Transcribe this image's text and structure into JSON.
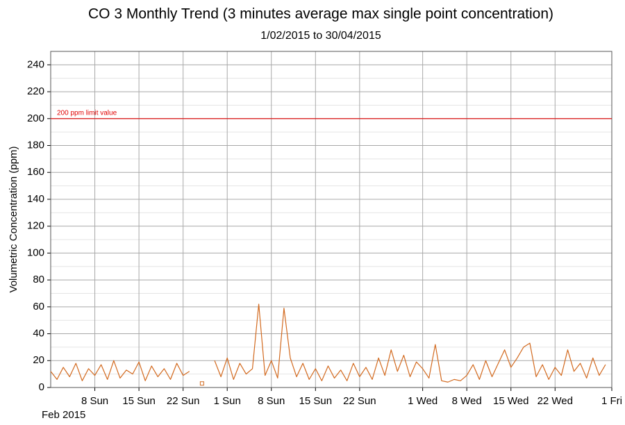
{
  "chart_data": {
    "type": "line",
    "title": "CO 3 Monthly Trend (3 minutes average max single point concentration)",
    "subtitle": "1/02/2015 to 30/04/2015",
    "y_label": "Volumetric Concentration (ppm)",
    "x_period_label": "Feb 2015",
    "color": "#d2691e",
    "grid": true,
    "ylim": [
      0,
      250
    ],
    "yticks": [
      0,
      20,
      40,
      60,
      80,
      100,
      120,
      140,
      160,
      180,
      200,
      220,
      240
    ],
    "yminor_ticks": [
      10,
      30,
      50,
      70,
      90,
      110,
      130,
      150,
      170,
      190,
      210,
      230
    ],
    "xlim": [
      "2015-02-01",
      "2015-05-01"
    ],
    "xticks": [
      {
        "value": "2015-02-08",
        "label": "8 Sun"
      },
      {
        "value": "2015-02-15",
        "label": "15 Sun"
      },
      {
        "value": "2015-02-22",
        "label": "22 Sun"
      },
      {
        "value": "2015-03-01",
        "label": "1 Sun"
      },
      {
        "value": "2015-03-08",
        "label": "8 Sun"
      },
      {
        "value": "2015-03-15",
        "label": "15 Sun"
      },
      {
        "value": "2015-03-22",
        "label": "22 Sun"
      },
      {
        "value": "2015-04-01",
        "label": "1 Wed"
      },
      {
        "value": "2015-04-08",
        "label": "8 Wed"
      },
      {
        "value": "2015-04-15",
        "label": "15 Wed"
      },
      {
        "value": "2015-04-22",
        "label": "22 Wed"
      },
      {
        "value": "2015-05-01",
        "label": "1 Fri"
      }
    ],
    "reference_line": {
      "value": 200,
      "label": "200 ppm limit value",
      "color": "#e00000"
    },
    "x": [
      "2015-02-01",
      "2015-02-02",
      "2015-02-03",
      "2015-02-04",
      "2015-02-05",
      "2015-02-06",
      "2015-02-07",
      "2015-02-08",
      "2015-02-09",
      "2015-02-10",
      "2015-02-11",
      "2015-02-12",
      "2015-02-13",
      "2015-02-14",
      "2015-02-15",
      "2015-02-16",
      "2015-02-17",
      "2015-02-18",
      "2015-02-19",
      "2015-02-20",
      "2015-02-21",
      "2015-02-22",
      "2015-02-23",
      "2015-02-24",
      "2015-02-25",
      "2015-02-26",
      "2015-02-27",
      "2015-02-28",
      "2015-03-01",
      "2015-03-02",
      "2015-03-03",
      "2015-03-04",
      "2015-03-05",
      "2015-03-06",
      "2015-03-07",
      "2015-03-08",
      "2015-03-09",
      "2015-03-10",
      "2015-03-11",
      "2015-03-12",
      "2015-03-13",
      "2015-03-14",
      "2015-03-15",
      "2015-03-16",
      "2015-03-17",
      "2015-03-18",
      "2015-03-19",
      "2015-03-20",
      "2015-03-21",
      "2015-03-22",
      "2015-03-23",
      "2015-03-24",
      "2015-03-25",
      "2015-03-26",
      "2015-03-27",
      "2015-03-28",
      "2015-03-29",
      "2015-03-30",
      "2015-03-31",
      "2015-04-01",
      "2015-04-02",
      "2015-04-03",
      "2015-04-04",
      "2015-04-05",
      "2015-04-06",
      "2015-04-07",
      "2015-04-08",
      "2015-04-09",
      "2015-04-10",
      "2015-04-11",
      "2015-04-12",
      "2015-04-13",
      "2015-04-14",
      "2015-04-15",
      "2015-04-16",
      "2015-04-17",
      "2015-04-18",
      "2015-04-19",
      "2015-04-20",
      "2015-04-21",
      "2015-04-22",
      "2015-04-23",
      "2015-04-24",
      "2015-04-25",
      "2015-04-26",
      "2015-04-27",
      "2015-04-28",
      "2015-04-29",
      "2015-04-30"
    ],
    "values": [
      12,
      6,
      15,
      8,
      18,
      5,
      14,
      9,
      17,
      6,
      20,
      7,
      13,
      10,
      19,
      5,
      16,
      8,
      14,
      6,
      18,
      9,
      12,
      null,
      3,
      null,
      20,
      8,
      22,
      6,
      18,
      10,
      14,
      62,
      9,
      20,
      7,
      59,
      22,
      8,
      18,
      6,
      14,
      5,
      16,
      7,
      13,
      5,
      18,
      8,
      15,
      6,
      22,
      9,
      28,
      12,
      24,
      8,
      19,
      14,
      7,
      32,
      5,
      4,
      6,
      5,
      9,
      17,
      6,
      20,
      8,
      18,
      28,
      15,
      22,
      30,
      33,
      8,
      17,
      6,
      15,
      9,
      28,
      12,
      18,
      7,
      22,
      9,
      17
    ]
  }
}
